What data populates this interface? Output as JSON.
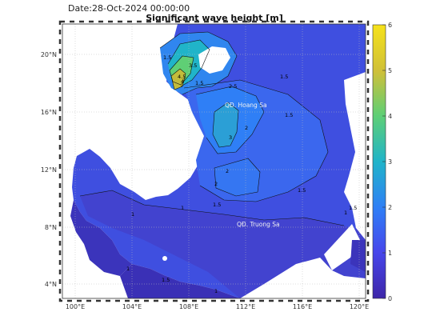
{
  "header": {
    "date_text": "Date:28-Oct-2024 00:00:00",
    "title": "Significant wave height [m]"
  },
  "axes": {
    "lat_ticks": [
      "20°N",
      "16°N",
      "12°N",
      "8°N",
      "4°N"
    ],
    "lon_ticks": [
      "100°E",
      "104°E",
      "108°E",
      "112°E",
      "116°E",
      "120°E"
    ]
  },
  "colorbar": {
    "min": 0,
    "max": 6,
    "tick_labels": [
      "6",
      "5",
      "4",
      "3",
      "2",
      "1",
      "0"
    ],
    "colormap": [
      "#3e26a8",
      "#4746eb",
      "#2f7ff6",
      "#20b4c9",
      "#5fcf75",
      "#cfc039",
      "#f6e21a"
    ]
  },
  "map": {
    "place_labels": [
      "QĐ. Hoang Sa",
      "QĐ. Truong Sa"
    ],
    "contour_labels": [
      "1",
      "1.5",
      "2",
      "2.5",
      "3",
      "3.5",
      "4",
      "4.5"
    ],
    "colors": {
      "land": "#ffffff",
      "sea_low": "#3a2fb2",
      "sea_mid": "#3f56e8",
      "sea_high": "#2aa6c8",
      "peak": "#c3bc3a"
    }
  }
}
